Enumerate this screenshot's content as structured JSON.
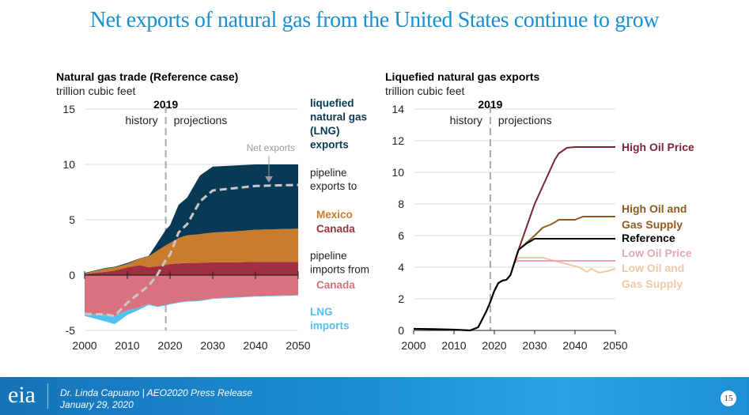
{
  "title": "Net exports of natural gas from the United States continue to grow",
  "footer": {
    "line1": "Dr. Linda Capuano | AEO2020 Press Release",
    "line2": "January 29, 2020",
    "page": "15",
    "logo": "eia"
  },
  "chart_data": [
    {
      "type": "area",
      "title": "Natural gas trade (Reference case)",
      "ylabel": "trillion cubic feet",
      "xlim": [
        2000,
        2050
      ],
      "ylim": [
        -5,
        15
      ],
      "xticks": [
        "2000",
        "2010",
        "2020",
        "2030",
        "2040",
        "2050"
      ],
      "yticks": [
        "-5",
        "0",
        "5",
        "10",
        "15"
      ],
      "divider": {
        "year": "2019",
        "left": "history",
        "right": "projections"
      },
      "x": [
        2000,
        2005,
        2007,
        2010,
        2013,
        2015,
        2017,
        2019,
        2020,
        2022,
        2024,
        2027,
        2030,
        2035,
        2040,
        2050
      ],
      "series": [
        {
          "name": "pipeline exports to Canada",
          "color": "#a03040",
          "values": [
            0.1,
            0.3,
            0.4,
            0.7,
            0.9,
            0.7,
            0.8,
            0.9,
            1.0,
            1.05,
            1.1,
            1.1,
            1.15,
            1.15,
            1.2,
            1.2
          ]
        },
        {
          "name": "pipeline exports to Mexico",
          "color": "#c87c2c",
          "values": [
            0.05,
            0.3,
            0.3,
            0.3,
            0.6,
            1.0,
            1.4,
            1.8,
            1.9,
            2.3,
            2.5,
            2.6,
            2.7,
            2.8,
            2.9,
            3.0
          ]
        },
        {
          "name": "liquefied natural gas (LNG) exports",
          "color": "#083a56",
          "values": [
            0.05,
            0.05,
            0.05,
            0.1,
            0.03,
            0.03,
            0.7,
            1.4,
            1.6,
            3.0,
            3.4,
            5.3,
            5.95,
            5.95,
            5.9,
            5.8
          ]
        },
        {
          "name": "pipeline imports from Canada",
          "color": "#d9727e",
          "values": [
            -3.5,
            -3.6,
            -3.7,
            -3.2,
            -2.9,
            -2.6,
            -2.8,
            -2.7,
            -2.6,
            -2.45,
            -2.35,
            -2.3,
            -2.1,
            -2.0,
            -1.9,
            -1.8
          ]
        },
        {
          "name": "LNG imports",
          "color": "#52c1ef",
          "values": [
            -0.2,
            -0.6,
            -0.75,
            -0.4,
            -0.2,
            -0.1,
            -0.08,
            -0.05,
            -0.05,
            -0.05,
            -0.05,
            -0.05,
            -0.05,
            -0.05,
            -0.05,
            -0.05
          ]
        }
      ],
      "annotation": "Net exports",
      "legend": {
        "lng_exports": "liquefied natural gas (LNG) exports",
        "lng_lines": [
          "liquefied",
          "natural gas",
          "(LNG)",
          "exports"
        ],
        "pipe_exp": [
          "pipeline",
          "exports to"
        ],
        "mexico": "Mexico",
        "canada": "Canada",
        "pipe_imp": [
          "pipeline",
          "imports from"
        ],
        "canada_imp": "Canada",
        "lng_imp": [
          "LNG",
          "imports"
        ]
      }
    },
    {
      "type": "line",
      "title": "Liquefied natural gas exports",
      "ylabel": "trillion cubic feet",
      "xlim": [
        2000,
        2050
      ],
      "ylim": [
        0,
        14
      ],
      "xticks": [
        "2000",
        "2010",
        "2020",
        "2030",
        "2040",
        "2050"
      ],
      "yticks": [
        "0",
        "2",
        "4",
        "6",
        "8",
        "10",
        "12",
        "14"
      ],
      "divider": {
        "year": "2019",
        "left": "history",
        "right": "projections"
      },
      "history": {
        "x": [
          2000,
          2005,
          2010,
          2014,
          2016,
          2018,
          2019,
          2020,
          2021,
          2022,
          2023,
          2024,
          2025,
          2026
        ],
        "y": [
          0.1,
          0.08,
          0.05,
          0,
          0.2,
          1.2,
          1.8,
          2.5,
          3.0,
          3.15,
          3.2,
          3.5,
          4.3,
          5.1
        ]
      },
      "series": [
        {
          "name": "High Oil Price",
          "label": [
            "High Oil Price"
          ],
          "color": "#7a2636",
          "x": [
            2026,
            2030,
            2035,
            2036,
            2038,
            2040,
            2050
          ],
          "y": [
            5.1,
            8.0,
            10.8,
            11.2,
            11.55,
            11.6,
            11.6
          ]
        },
        {
          "name": "High Oil and Gas Supply",
          "label": [
            "High Oil and",
            "Gas Supply"
          ],
          "color": "#8e5a22",
          "x": [
            2026,
            2030,
            2032,
            2034,
            2036,
            2040,
            2042,
            2050
          ],
          "y": [
            5.1,
            6.0,
            6.5,
            6.7,
            7.0,
            7.0,
            7.2,
            7.2
          ]
        },
        {
          "name": "Reference",
          "label": [
            "Reference"
          ],
          "color": "#000000",
          "x": [
            2026,
            2028,
            2030,
            2050
          ],
          "y": [
            5.1,
            5.5,
            5.8,
            5.8
          ]
        },
        {
          "name": "Low Oil Price",
          "label": [
            "Low Oil Price"
          ],
          "color": "#e7a6b4",
          "x": [
            2025,
            2026,
            2050
          ],
          "y": [
            4.3,
            4.4,
            4.4
          ]
        },
        {
          "name": "Low Oil and Gas Supply",
          "label": [
            "Low Oil and",
            "Gas Supply"
          ],
          "color": "#f0c9a4",
          "x": [
            2025,
            2026,
            2032,
            2035,
            2038,
            2041,
            2043,
            2044,
            2046,
            2048,
            2050
          ],
          "y": [
            4.3,
            4.6,
            4.6,
            4.4,
            4.2,
            4.0,
            3.7,
            3.9,
            3.65,
            3.75,
            3.9
          ]
        }
      ]
    }
  ]
}
